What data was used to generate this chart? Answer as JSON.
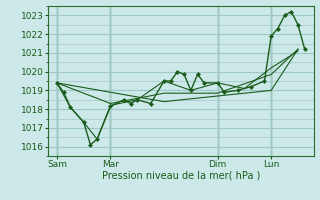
{
  "background_color": "#cce8e8",
  "grid_color": "#a0c8c8",
  "line_color": "#1a5c1a",
  "marker_color": "#1a5c1a",
  "xlabel": "Pression niveau de la mer( hPa )",
  "ylim": [
    1015.5,
    1023.5
  ],
  "yticks": [
    1016,
    1017,
    1018,
    1019,
    1020,
    1021,
    1022,
    1023
  ],
  "day_labels": [
    "Sam",
    "Mar",
    "Dim",
    "Lun"
  ],
  "day_positions": [
    0,
    48,
    144,
    192
  ],
  "xlim": [
    -8,
    230
  ],
  "series": [
    [
      0,
      1019.4,
      6,
      1018.9,
      12,
      1018.1,
      24,
      1017.3,
      30,
      1016.1,
      36,
      1016.4,
      48,
      1018.15,
      60,
      1018.5,
      66,
      1018.3,
      72,
      1018.5,
      84,
      1018.3,
      96,
      1019.5,
      102,
      1019.5,
      108,
      1020.0,
      114,
      1019.85,
      120,
      1019.0,
      126,
      1019.85,
      132,
      1019.4,
      144,
      1019.4,
      150,
      1018.9,
      162,
      1019.0,
      174,
      1019.2,
      186,
      1019.5,
      192,
      1021.9,
      198,
      1022.3,
      204,
      1023.0,
      210,
      1023.2,
      216,
      1022.5,
      222,
      1021.2
    ],
    [
      0,
      1019.4,
      12,
      1018.1,
      24,
      1017.3,
      36,
      1016.4,
      48,
      1018.2,
      72,
      1018.5,
      96,
      1019.5,
      120,
      1019.0,
      144,
      1019.4,
      168,
      1019.1,
      192,
      1020.2,
      216,
      1021.1
    ],
    [
      0,
      1019.4,
      48,
      1018.3,
      96,
      1018.85,
      144,
      1018.85,
      192,
      1019.85,
      216,
      1021.2
    ],
    [
      0,
      1019.4,
      96,
      1018.4,
      192,
      1019.0,
      216,
      1021.2
    ]
  ]
}
